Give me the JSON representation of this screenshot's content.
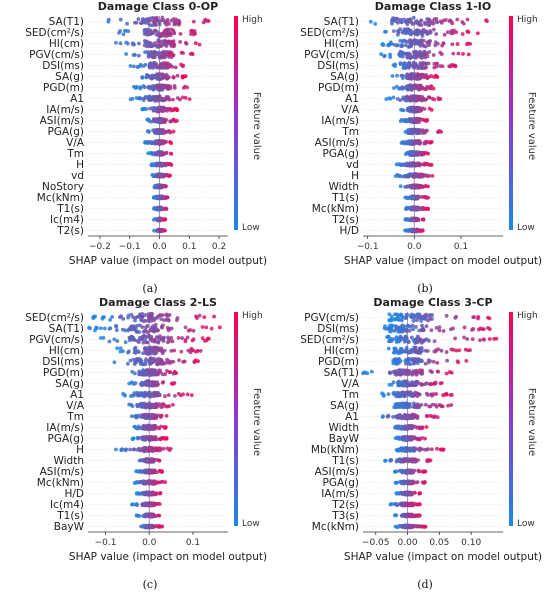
{
  "colors": {
    "low": "#1e88e5",
    "high": "#ff0052",
    "zero_line": "#999999",
    "grid": "#cccccc"
  },
  "shared": {
    "xlabel": "SHAP value (impact on model output)",
    "colorbar_high": "High",
    "colorbar_low": "Low",
    "colorbar_title": "Feature value"
  },
  "chart_data": [
    {
      "type": "scatter",
      "title": "Damage Class 0-OP",
      "caption": "(a)",
      "xlim": [
        -0.24,
        0.23
      ],
      "xticks": [
        -0.2,
        -0.1,
        0.0,
        0.1,
        0.2
      ],
      "tick_labels": [
        "−0.2",
        "−0.1",
        "0.0",
        "0.1",
        "0.2"
      ],
      "features": [
        {
          "name": "SA(T1)",
          "min": -0.22,
          "max": 0.2,
          "spread": 0.9
        },
        {
          "name": "SED(cm²/s)",
          "min": -0.16,
          "max": 0.13,
          "spread": 0.85
        },
        {
          "name": "HI(cm)",
          "min": -0.15,
          "max": 0.14,
          "spread": 0.8
        },
        {
          "name": "PGV(cm/s)",
          "min": -0.12,
          "max": 0.12,
          "spread": 0.75
        },
        {
          "name": "DSI(ms)",
          "min": -0.1,
          "max": 0.1,
          "spread": 0.65
        },
        {
          "name": "SA(g)",
          "min": -0.08,
          "max": 0.09,
          "spread": 0.6
        },
        {
          "name": "PGD(m)",
          "min": -0.09,
          "max": 0.1,
          "spread": 0.55
        },
        {
          "name": "A1",
          "min": -0.1,
          "max": 0.11,
          "spread": 0.55
        },
        {
          "name": "IA(m/s)",
          "min": -0.06,
          "max": 0.06,
          "spread": 0.5
        },
        {
          "name": "ASI(m/s)",
          "min": -0.05,
          "max": 0.06,
          "spread": 0.45
        },
        {
          "name": "PGA(g)",
          "min": -0.04,
          "max": 0.05,
          "spread": 0.4
        },
        {
          "name": "V/A",
          "min": -0.05,
          "max": 0.04,
          "spread": 0.35
        },
        {
          "name": "Tm",
          "min": -0.04,
          "max": 0.04,
          "spread": 0.35
        },
        {
          "name": "H",
          "min": -0.03,
          "max": 0.05,
          "spread": 0.3
        },
        {
          "name": "vd",
          "min": -0.03,
          "max": 0.04,
          "spread": 0.3
        },
        {
          "name": "NoStory",
          "min": -0.02,
          "max": 0.03,
          "spread": 0.3
        },
        {
          "name": "Mc(kNm)",
          "min": -0.02,
          "max": 0.03,
          "spread": 0.25
        },
        {
          "name": "T1(s)",
          "min": -0.02,
          "max": 0.03,
          "spread": 0.25
        },
        {
          "name": "Ic(m4)",
          "min": -0.02,
          "max": 0.02,
          "spread": 0.25
        },
        {
          "name": "T2(s)",
          "min": -0.02,
          "max": 0.02,
          "spread": 0.2
        }
      ]
    },
    {
      "type": "scatter",
      "title": "Damage Class 1-IO",
      "caption": "(b)",
      "xlim": [
        -0.11,
        0.19
      ],
      "xticks": [
        -0.1,
        0.0,
        0.1
      ],
      "tick_labels": [
        "−0.1",
        "0.0",
        "0.1"
      ],
      "features": [
        {
          "name": "SA(T1)",
          "min": -0.11,
          "max": 0.17,
          "spread": 0.9
        },
        {
          "name": "SED(cm²/s)",
          "min": -0.08,
          "max": 0.14,
          "spread": 0.85
        },
        {
          "name": "HI(cm)",
          "min": -0.07,
          "max": 0.12,
          "spread": 0.8
        },
        {
          "name": "PGV(cm/s)",
          "min": -0.08,
          "max": 0.12,
          "spread": 0.8
        },
        {
          "name": "DSI(ms)",
          "min": -0.06,
          "max": 0.09,
          "spread": 0.7
        },
        {
          "name": "SA(g)",
          "min": -0.05,
          "max": 0.05,
          "spread": 0.6
        },
        {
          "name": "PGD(m)",
          "min": -0.05,
          "max": 0.05,
          "spread": 0.6
        },
        {
          "name": "A1",
          "min": -0.06,
          "max": 0.06,
          "spread": 0.55
        },
        {
          "name": "V/A",
          "min": -0.03,
          "max": 0.04,
          "spread": 0.5
        },
        {
          "name": "IA(m/s)",
          "min": -0.03,
          "max": 0.03,
          "spread": 0.45
        },
        {
          "name": "Tm",
          "min": -0.03,
          "max": 0.06,
          "spread": 0.45
        },
        {
          "name": "ASI(m/s)",
          "min": -0.03,
          "max": 0.04,
          "spread": 0.4
        },
        {
          "name": "PGA(g)",
          "min": -0.02,
          "max": 0.03,
          "spread": 0.4
        },
        {
          "name": "vd",
          "min": -0.04,
          "max": 0.04,
          "spread": 0.35
        },
        {
          "name": "H",
          "min": -0.04,
          "max": 0.05,
          "spread": 0.35
        },
        {
          "name": "Width",
          "min": -0.03,
          "max": 0.03,
          "spread": 0.3
        },
        {
          "name": "T1(s)",
          "min": -0.02,
          "max": 0.03,
          "spread": 0.3
        },
        {
          "name": "Mc(kNm)",
          "min": -0.02,
          "max": 0.03,
          "spread": 0.3
        },
        {
          "name": "T2(s)",
          "min": -0.02,
          "max": 0.02,
          "spread": 0.25
        },
        {
          "name": "H/D",
          "min": -0.02,
          "max": 0.02,
          "spread": 0.25
        }
      ]
    },
    {
      "type": "scatter",
      "title": "Damage Class 2-LS",
      "caption": "(c)",
      "xlim": [
        -0.14,
        0.18
      ],
      "xticks": [
        -0.1,
        0.0,
        0.1
      ],
      "tick_labels": [
        "−0.1",
        "0.0",
        "0.1"
      ],
      "features": [
        {
          "name": "SED(cm²/s)",
          "min": -0.13,
          "max": 0.15,
          "spread": 0.9
        },
        {
          "name": "SA(T1)",
          "min": -0.14,
          "max": 0.17,
          "spread": 0.9
        },
        {
          "name": "PGV(cm/s)",
          "min": -0.12,
          "max": 0.14,
          "spread": 0.85
        },
        {
          "name": "HI(cm)",
          "min": -0.08,
          "max": 0.13,
          "spread": 0.8
        },
        {
          "name": "DSI(ms)",
          "min": -0.08,
          "max": 0.12,
          "spread": 0.7
        },
        {
          "name": "PGD(m)",
          "min": -0.05,
          "max": 0.07,
          "spread": 0.6
        },
        {
          "name": "SA(g)",
          "min": -0.05,
          "max": 0.06,
          "spread": 0.55
        },
        {
          "name": "A1",
          "min": -0.06,
          "max": 0.1,
          "spread": 0.5
        },
        {
          "name": "V/A",
          "min": -0.05,
          "max": 0.06,
          "spread": 0.5
        },
        {
          "name": "Tm",
          "min": -0.05,
          "max": 0.05,
          "spread": 0.45
        },
        {
          "name": "IA(m/s)",
          "min": -0.04,
          "max": 0.04,
          "spread": 0.45
        },
        {
          "name": "PGA(g)",
          "min": -0.04,
          "max": 0.04,
          "spread": 0.4
        },
        {
          "name": "H",
          "min": -0.08,
          "max": 0.05,
          "spread": 0.4
        },
        {
          "name": "Width",
          "min": -0.03,
          "max": 0.03,
          "spread": 0.35
        },
        {
          "name": "ASI(m/s)",
          "min": -0.03,
          "max": 0.03,
          "spread": 0.35
        },
        {
          "name": "Mc(kNm)",
          "min": -0.04,
          "max": 0.04,
          "spread": 0.35
        },
        {
          "name": "H/D",
          "min": -0.03,
          "max": 0.03,
          "spread": 0.3
        },
        {
          "name": "Ic(m4)",
          "min": -0.04,
          "max": 0.03,
          "spread": 0.3
        },
        {
          "name": "T1(s)",
          "min": -0.03,
          "max": 0.03,
          "spread": 0.3
        },
        {
          "name": "BayW",
          "min": -0.02,
          "max": 0.03,
          "spread": 0.25
        }
      ]
    },
    {
      "type": "scatter",
      "title": "Damage Class 3-CP",
      "caption": "(d)",
      "xlim": [
        -0.07,
        0.15
      ],
      "xticks": [
        -0.05,
        0.0,
        0.05,
        0.1
      ],
      "tick_labels": [
        "−0.05",
        "0.00",
        "0.05",
        "0.10"
      ],
      "features": [
        {
          "name": "PGV(cm/s)",
          "min": -0.03,
          "max": 0.14,
          "spread": 0.85
        },
        {
          "name": "DSI(ms)",
          "min": -0.04,
          "max": 0.13,
          "spread": 0.8
        },
        {
          "name": "SED(cm²/s)",
          "min": -0.04,
          "max": 0.14,
          "spread": 0.8
        },
        {
          "name": "HI(cm)",
          "min": -0.03,
          "max": 0.1,
          "spread": 0.7
        },
        {
          "name": "PGD(m)",
          "min": -0.03,
          "max": 0.1,
          "spread": 0.65
        },
        {
          "name": "SA(T1)",
          "min": -0.07,
          "max": 0.07,
          "spread": 0.6
        },
        {
          "name": "V/A",
          "min": -0.03,
          "max": 0.06,
          "spread": 0.55
        },
        {
          "name": "Tm",
          "min": -0.04,
          "max": 0.07,
          "spread": 0.5
        },
        {
          "name": "SA(g)",
          "min": -0.03,
          "max": 0.08,
          "spread": 0.5
        },
        {
          "name": "A1",
          "min": -0.05,
          "max": 0.05,
          "spread": 0.45
        },
        {
          "name": "Width",
          "min": -0.02,
          "max": 0.03,
          "spread": 0.4
        },
        {
          "name": "BayW",
          "min": -0.02,
          "max": 0.03,
          "spread": 0.4
        },
        {
          "name": "Mb(kNm)",
          "min": -0.02,
          "max": 0.06,
          "spread": 0.35
        },
        {
          "name": "T1(s)",
          "min": -0.04,
          "max": 0.04,
          "spread": 0.35
        },
        {
          "name": "ASI(m/s)",
          "min": -0.02,
          "max": 0.03,
          "spread": 0.35
        },
        {
          "name": "PGA(g)",
          "min": -0.02,
          "max": 0.03,
          "spread": 0.3
        },
        {
          "name": "IA(m/s)",
          "min": -0.02,
          "max": 0.02,
          "spread": 0.3
        },
        {
          "name": "T2(s)",
          "min": -0.03,
          "max": 0.02,
          "spread": 0.3
        },
        {
          "name": "T3(s)",
          "min": -0.02,
          "max": 0.02,
          "spread": 0.25
        },
        {
          "name": "Mc(kNm)",
          "min": -0.02,
          "max": 0.03,
          "spread": 0.25
        }
      ]
    }
  ]
}
